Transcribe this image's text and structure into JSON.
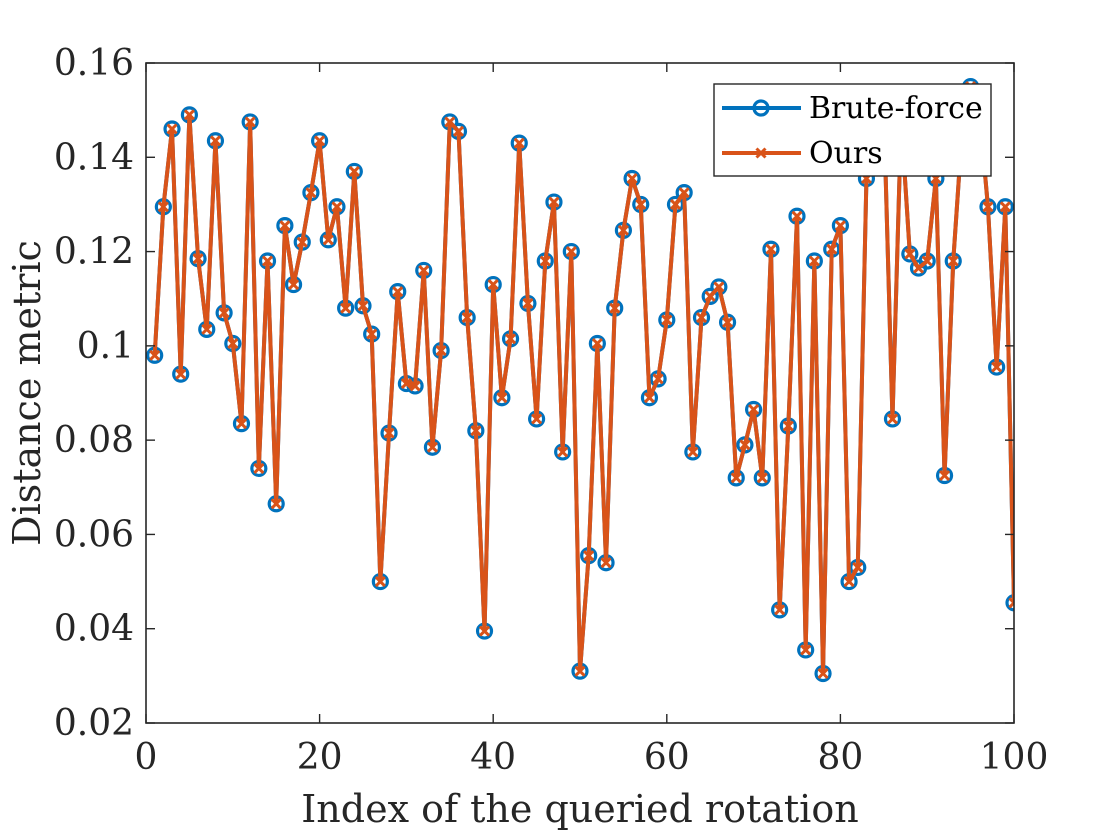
{
  "chart_data": {
    "type": "line",
    "title": "",
    "xlabel": "Index of the queried rotation",
    "ylabel": "Distance metric",
    "xlim": [
      0,
      100
    ],
    "ylim": [
      0.02,
      0.16
    ],
    "xticks": [
      0,
      20,
      40,
      60,
      80,
      100
    ],
    "xtick_labels": [
      "0",
      "20",
      "40",
      "60",
      "80",
      "100"
    ],
    "yticks": [
      0.02,
      0.04,
      0.06,
      0.08,
      0.1,
      0.12,
      0.14,
      0.16
    ],
    "ytick_labels": [
      "0.02",
      "0.04",
      "0.06",
      "0.08",
      "0.1",
      "0.12",
      "0.14",
      "0.16"
    ],
    "grid": false,
    "legend_position": "top-right",
    "x": [
      1,
      2,
      3,
      4,
      5,
      6,
      7,
      8,
      9,
      10,
      11,
      12,
      13,
      14,
      15,
      16,
      17,
      18,
      19,
      20,
      21,
      22,
      23,
      24,
      25,
      26,
      27,
      28,
      29,
      30,
      31,
      32,
      33,
      34,
      35,
      36,
      37,
      38,
      39,
      40,
      41,
      42,
      43,
      44,
      45,
      46,
      47,
      48,
      49,
      50,
      51,
      52,
      53,
      54,
      55,
      56,
      57,
      58,
      59,
      60,
      61,
      62,
      63,
      64,
      65,
      66,
      67,
      68,
      69,
      70,
      71,
      72,
      73,
      74,
      75,
      76,
      77,
      78,
      79,
      80,
      81,
      82,
      83,
      84,
      85,
      86,
      87,
      88,
      89,
      90,
      91,
      92,
      93,
      94,
      95,
      96,
      97,
      98,
      99,
      100
    ],
    "series": [
      {
        "name": "Brute-force",
        "color": "#0072BD",
        "marker": "circle",
        "values": [
          0.098,
          0.1295,
          0.146,
          0.094,
          0.149,
          0.1185,
          0.1035,
          0.1435,
          0.107,
          0.1005,
          0.0835,
          0.1475,
          0.074,
          0.118,
          0.0665,
          0.1255,
          0.113,
          0.122,
          0.1325,
          0.1435,
          0.1225,
          0.1295,
          0.108,
          0.137,
          0.1085,
          0.1025,
          0.05,
          0.0815,
          0.1115,
          0.092,
          0.0915,
          0.116,
          0.0785,
          0.099,
          0.1475,
          0.1455,
          0.106,
          0.082,
          0.0395,
          0.113,
          0.089,
          0.1015,
          0.143,
          0.109,
          0.0845,
          0.118,
          0.1305,
          0.0775,
          0.12,
          0.031,
          0.0555,
          0.1005,
          0.054,
          0.108,
          0.1245,
          0.1355,
          0.13,
          0.089,
          0.093,
          0.1055,
          0.13,
          0.1325,
          0.0775,
          0.106,
          0.1105,
          0.1125,
          0.105,
          0.072,
          0.079,
          0.0865,
          0.072,
          0.1205,
          0.044,
          0.083,
          0.1275,
          0.0355,
          0.118,
          0.0305,
          0.1205,
          0.1255,
          0.05,
          0.053,
          0.1355,
          0.145,
          0.15,
          0.0845,
          0.148,
          0.1195,
          0.1165,
          0.118,
          0.1355,
          0.0725,
          0.118,
          0.145,
          0.155,
          0.15,
          0.1295,
          0.0955,
          0.1295,
          0.0455
        ]
      },
      {
        "name": "Ours",
        "color": "#D95319",
        "marker": "x",
        "values": [
          0.098,
          0.1295,
          0.146,
          0.094,
          0.149,
          0.1185,
          0.1035,
          0.1435,
          0.107,
          0.1005,
          0.0835,
          0.1475,
          0.074,
          0.118,
          0.0665,
          0.1255,
          0.113,
          0.122,
          0.1325,
          0.1435,
          0.1225,
          0.1295,
          0.108,
          0.137,
          0.1085,
          0.1025,
          0.05,
          0.0815,
          0.1115,
          0.092,
          0.0915,
          0.116,
          0.0785,
          0.099,
          0.1475,
          0.1455,
          0.106,
          0.082,
          0.0395,
          0.113,
          0.089,
          0.1015,
          0.143,
          0.109,
          0.0845,
          0.118,
          0.1305,
          0.0775,
          0.12,
          0.031,
          0.0555,
          0.1005,
          0.054,
          0.108,
          0.1245,
          0.1355,
          0.13,
          0.089,
          0.093,
          0.1055,
          0.13,
          0.1325,
          0.0775,
          0.106,
          0.1105,
          0.1125,
          0.105,
          0.072,
          0.079,
          0.0865,
          0.072,
          0.1205,
          0.044,
          0.083,
          0.1275,
          0.0355,
          0.118,
          0.0305,
          0.1205,
          0.1255,
          0.05,
          0.053,
          0.1355,
          0.145,
          0.15,
          0.0845,
          0.148,
          0.1195,
          0.1165,
          0.118,
          0.1355,
          0.0725,
          0.118,
          0.145,
          0.155,
          0.15,
          0.1295,
          0.0955,
          0.1295,
          0.0455
        ]
      }
    ]
  }
}
